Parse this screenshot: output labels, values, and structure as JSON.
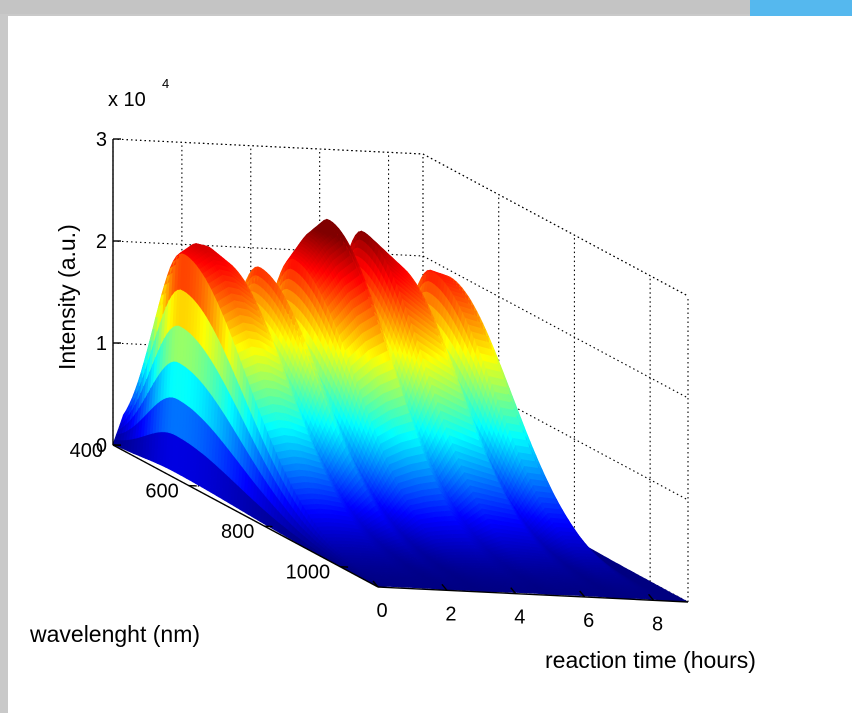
{
  "colors": {
    "frame_accent": "#55b8ee",
    "colormap": "jet"
  },
  "chart_data": {
    "type": "surface3d",
    "title": "",
    "xlabel": "reaction time (hours)",
    "ylabel": "wavelenght (nm)",
    "zlabel": "Intensity (a.u.)",
    "z_multiplier_label": "x 10",
    "z_multiplier_exponent": "4",
    "xlim": [
      0,
      9
    ],
    "ylim": [
      400,
      1100
    ],
    "zlim": [
      0,
      30000
    ],
    "x_ticks": [
      0,
      2,
      4,
      6,
      8
    ],
    "y_ticks": [
      400,
      600,
      800,
      1000
    ],
    "z_ticks": [
      0,
      1,
      2,
      3
    ],
    "x_tick_labels": [
      "0",
      "2",
      "4",
      "6",
      "8"
    ],
    "y_tick_labels": [
      "400",
      "600",
      "800",
      "1000"
    ],
    "z_tick_labels": [
      "0",
      "1",
      "2",
      "3"
    ],
    "grid": true,
    "colormap": "jet",
    "spectrum_peak_wavelength_nm": 560,
    "intensity_profile": {
      "time_hours": [
        0,
        0.3,
        0.7,
        1.0,
        1.5,
        2.0,
        2.5,
        3.0,
        3.5,
        4.0,
        4.5,
        5.0,
        5.5,
        6.0,
        6.5,
        7.0,
        7.5,
        8.0,
        8.5,
        9.0
      ],
      "peak_intensity": [
        600,
        22000,
        23000,
        22800,
        21500,
        13000,
        21000,
        12000,
        22000,
        24500,
        26000,
        17000,
        25000,
        23500,
        22000,
        11000,
        21500,
        21000,
        1000,
        500
      ]
    }
  }
}
